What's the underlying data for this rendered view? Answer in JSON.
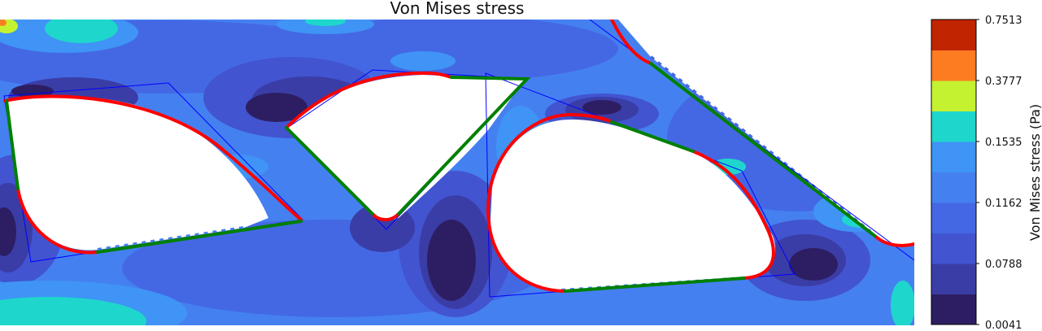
{
  "chart_data": {
    "type": "heatmap",
    "title": "Von Mises stress",
    "colorbar": {
      "label": "Von Mises stress (Pa)",
      "tick_labels": [
        "0.0041",
        "0.0788",
        "0.1162",
        "0.1535",
        "0.3777",
        "0.7513"
      ],
      "levels": [
        {
          "color": "#2d1e63"
        },
        {
          "color": "#3b3da6"
        },
        {
          "color": "#4254d0"
        },
        {
          "color": "#4468e4"
        },
        {
          "color": "#4580f0"
        },
        {
          "color": "#3f94f5"
        },
        {
          "color": "#1fd6cc"
        },
        {
          "color": "#c4f231"
        },
        {
          "color": "#fd7c21"
        },
        {
          "color": "#c12400"
        }
      ]
    },
    "overlay_colors": {
      "boundary_curve": "#ff0000",
      "boundary_straight": "#008000",
      "mesh_outline": "#0000ff",
      "void": "#ffffff"
    }
  }
}
